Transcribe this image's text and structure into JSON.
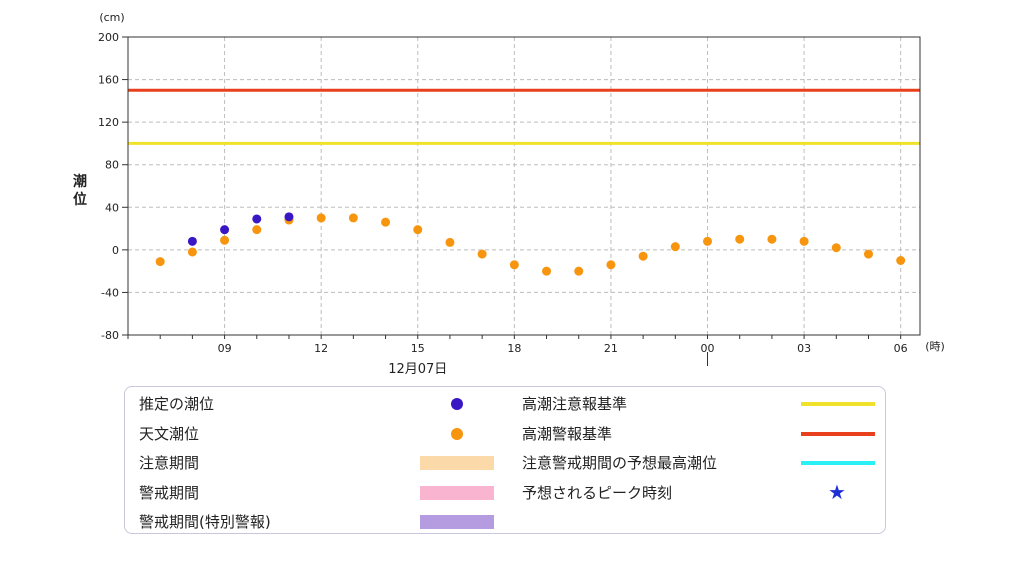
{
  "chart_data": {
    "type": "scatter",
    "y_unit": "(cm)",
    "x_unit": "(時)",
    "ylabel": "潮\n位",
    "ylim": [
      -80,
      200
    ],
    "yticks": [
      -80,
      -40,
      0,
      40,
      80,
      120,
      160,
      200
    ],
    "xticks": [
      {
        "hour": 9,
        "label": "09"
      },
      {
        "hour": 12,
        "label": "12"
      },
      {
        "hour": 15,
        "label": "15"
      },
      {
        "hour": 18,
        "label": "18"
      },
      {
        "hour": 21,
        "label": "21"
      },
      {
        "hour": 24,
        "label": "00"
      },
      {
        "hour": 27,
        "label": "03"
      },
      {
        "hour": 30,
        "label": "06"
      }
    ],
    "xlim_hours": [
      6,
      30.6
    ],
    "date_label": "12月07日",
    "date_hour": 15,
    "day_marker_hour": 24,
    "grid": true,
    "reference_lines": [
      {
        "name": "高潮警報基準",
        "value": 150,
        "color": "#e8401c"
      },
      {
        "name": "高潮注意報基準",
        "value": 100,
        "color": "#f0e22a"
      }
    ],
    "series": [
      {
        "name": "推定の潮位",
        "color": "#3a17c4",
        "points": [
          [
            8,
            8
          ],
          [
            9,
            19
          ],
          [
            10,
            29
          ],
          [
            11,
            31
          ]
        ]
      },
      {
        "name": "天文潮位",
        "color": "#f7950f",
        "points": [
          [
            7,
            -11
          ],
          [
            8,
            -2
          ],
          [
            9,
            9
          ],
          [
            10,
            19
          ],
          [
            11,
            28
          ],
          [
            12,
            30
          ],
          [
            13,
            30
          ],
          [
            14,
            26
          ],
          [
            15,
            19
          ],
          [
            16,
            7
          ],
          [
            17,
            -4
          ],
          [
            18,
            -14
          ],
          [
            19,
            -20
          ],
          [
            20,
            -20
          ],
          [
            21,
            -14
          ],
          [
            22,
            -6
          ],
          [
            23,
            3
          ],
          [
            24,
            8
          ],
          [
            25,
            10
          ],
          [
            26,
            10
          ],
          [
            27,
            8
          ],
          [
            28,
            2
          ],
          [
            29,
            -4
          ],
          [
            30,
            -10
          ]
        ]
      }
    ]
  },
  "legend": {
    "left": [
      {
        "label": "推定の潮位",
        "kind": "dot",
        "color": "#3a17c4"
      },
      {
        "label": "天文潮位",
        "kind": "dot",
        "color": "#f7950f"
      },
      {
        "label": "注意期間",
        "kind": "band",
        "color": "#fbd9a8"
      },
      {
        "label": "警戒期間",
        "kind": "band",
        "color": "#f9b4cf"
      },
      {
        "label": "警戒期間(特別警報)",
        "kind": "band",
        "color": "#b59ce0"
      }
    ],
    "right": [
      {
        "label": "高潮注意報基準",
        "kind": "line",
        "color": "#f0e22a"
      },
      {
        "label": "高潮警報基準",
        "kind": "line",
        "color": "#e8401c"
      },
      {
        "label": "注意警戒期間の予想最高潮位",
        "kind": "line",
        "color": "#29f0f5"
      },
      {
        "label": "予想されるピーク時刻",
        "kind": "star",
        "color": "#1f2fd6"
      }
    ]
  }
}
